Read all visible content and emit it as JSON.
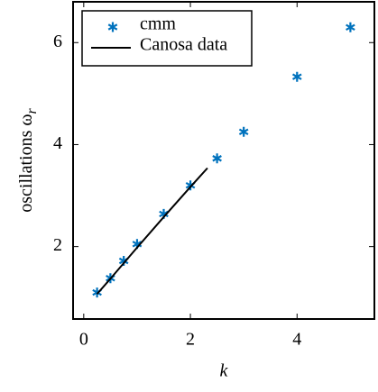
{
  "chart_data": {
    "type": "scatter",
    "xlabel": "k",
    "ylabel": "oscillations ω",
    "ylabel_subscript": "r",
    "xlim": [
      -0.2,
      5.45
    ],
    "ylim": [
      0.58,
      6.8
    ],
    "xticks": [
      0,
      2,
      4
    ],
    "yticks": [
      2,
      4,
      6
    ],
    "grid": false,
    "legend": "upper left",
    "series": [
      {
        "name": "cmm",
        "color": "#0072bd",
        "marker": "asterisk",
        "x": [
          0.25,
          0.5,
          0.75,
          1,
          1.5,
          2,
          2.5,
          3,
          4,
          5
        ],
        "values": [
          1.1,
          1.38,
          1.72,
          2.05,
          2.64,
          3.2,
          3.73,
          4.25,
          5.33,
          6.3
        ]
      },
      {
        "name": "Canosa data",
        "color": "#000000",
        "marker": "line",
        "x": [
          0.25,
          0.5,
          1,
          1.5,
          2,
          2.32
        ],
        "values": [
          1.07,
          1.37,
          1.98,
          2.58,
          3.17,
          3.54
        ]
      }
    ]
  }
}
